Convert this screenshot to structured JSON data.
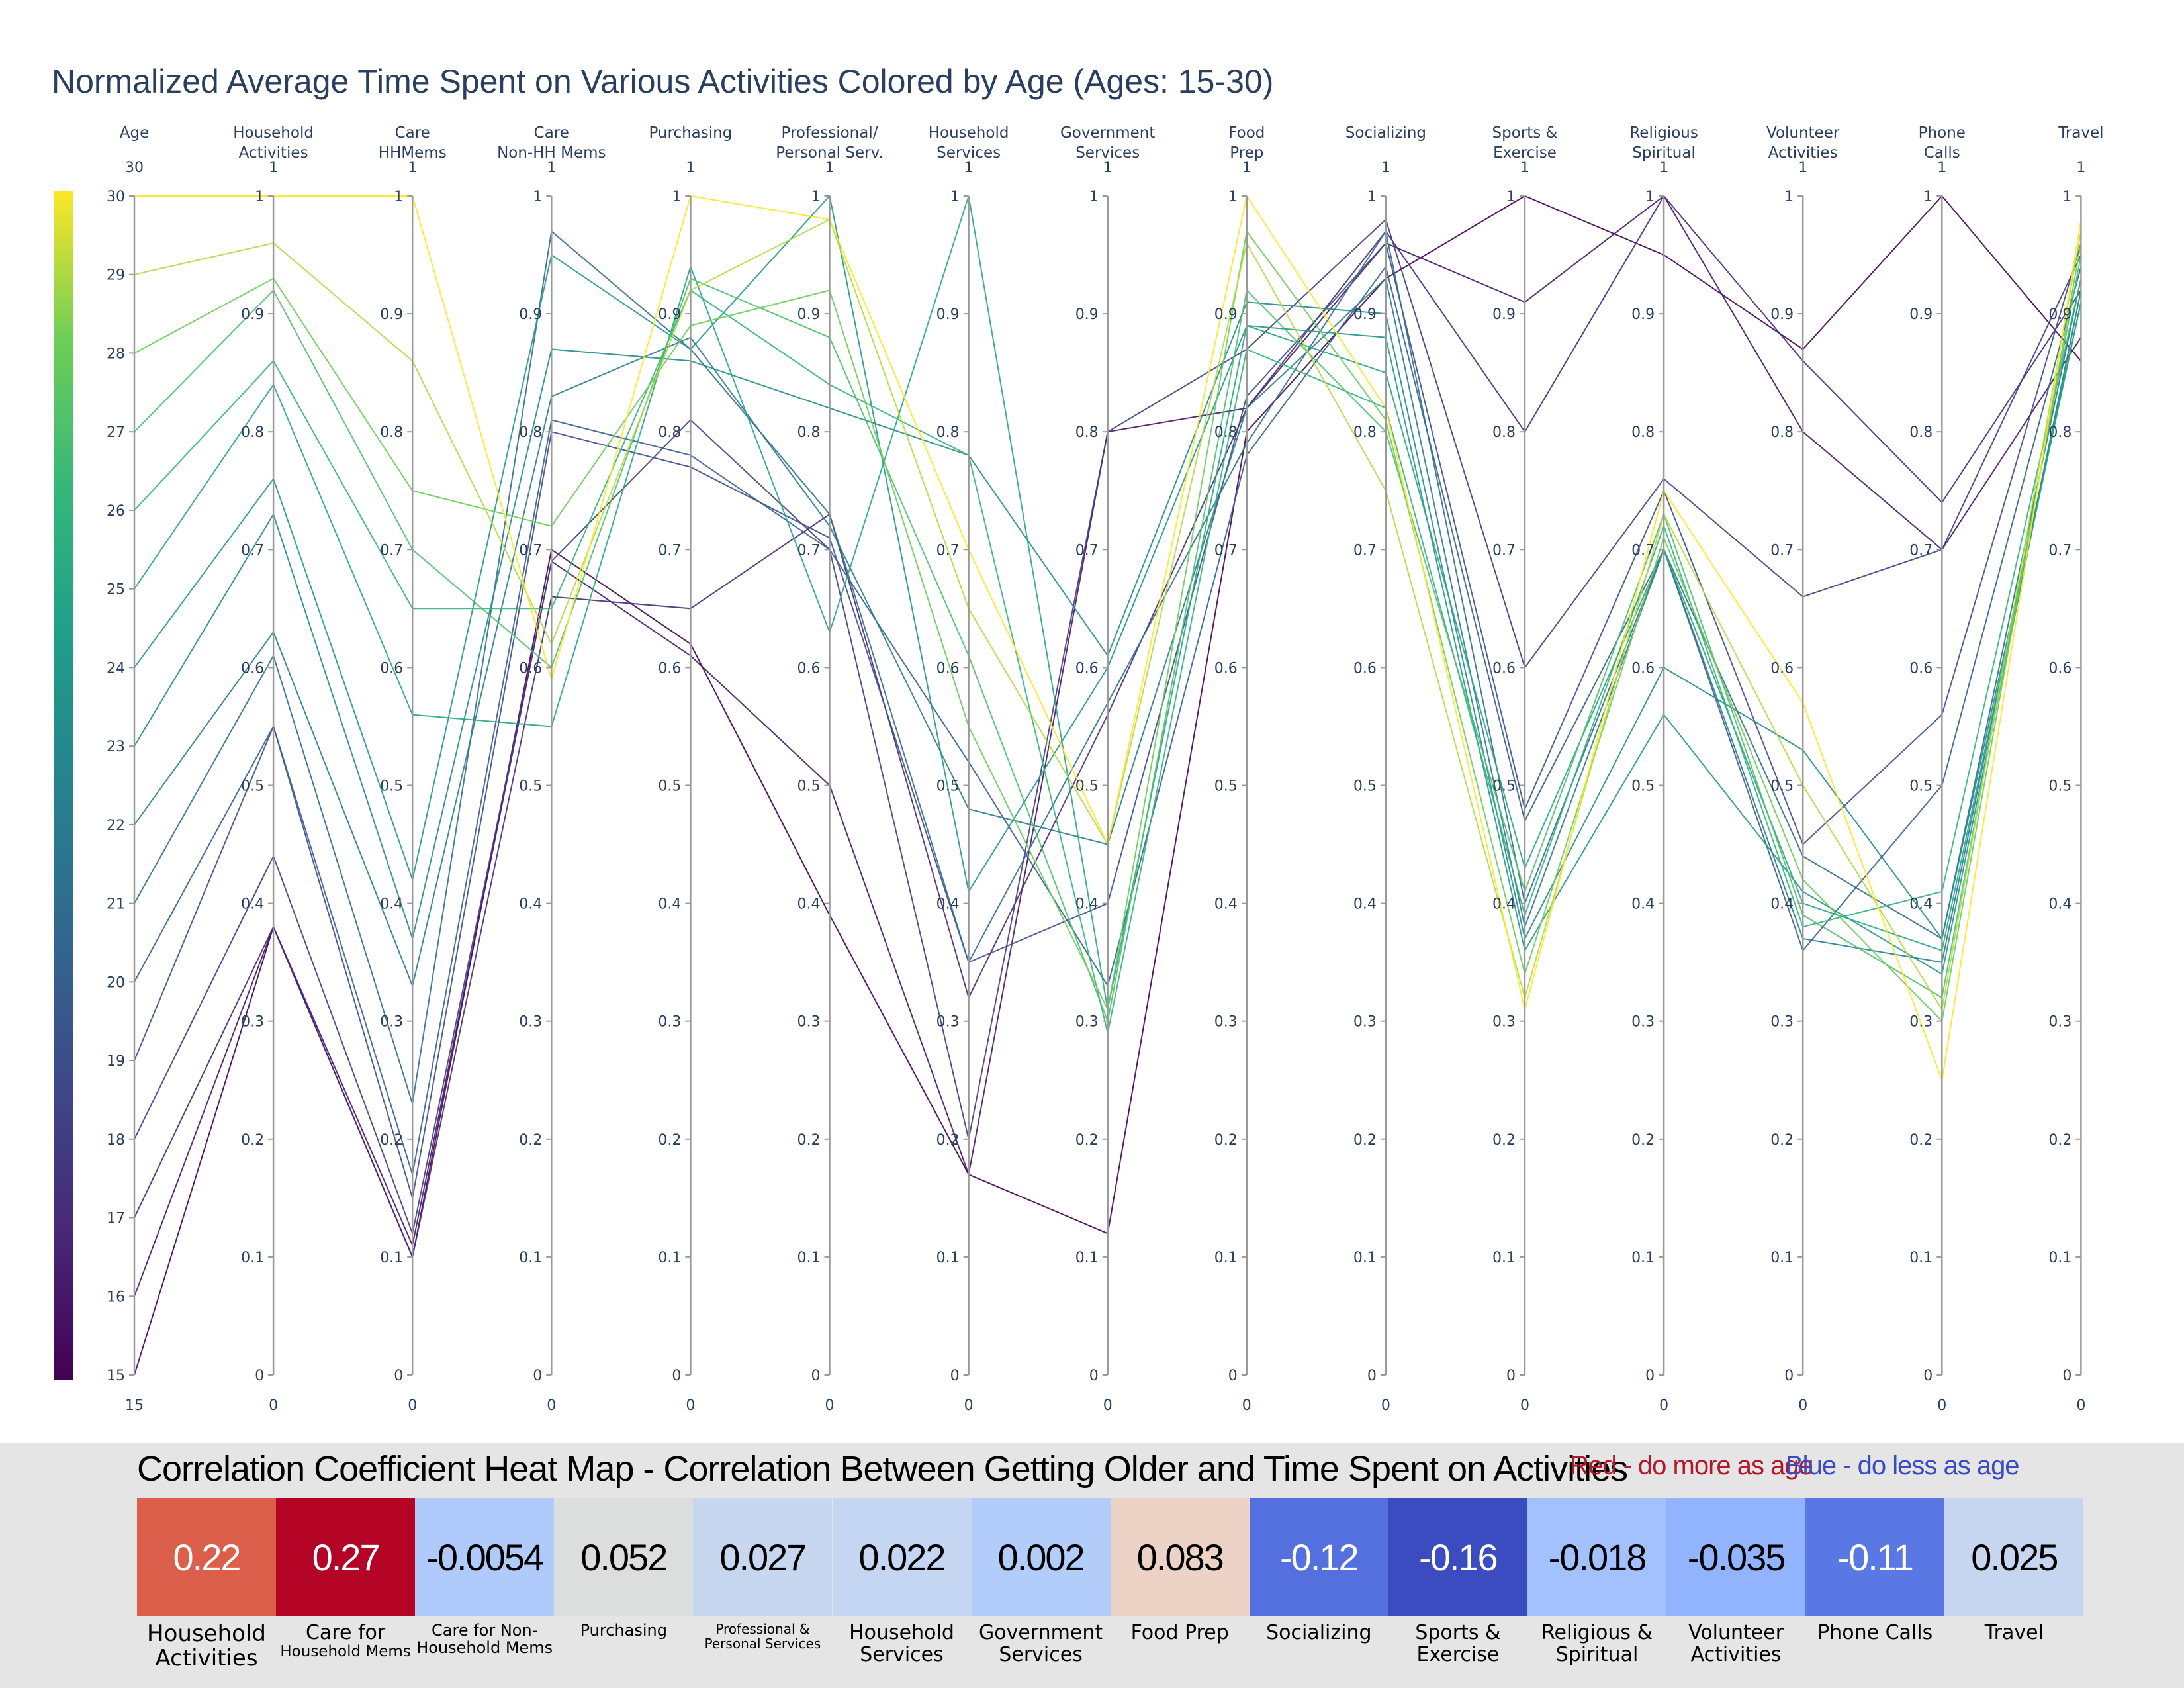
{
  "chart_data": [
    {
      "type": "parallel_coordinates",
      "title": "Normalized Average Time Spent on Various Activities Colored by Age (Ages: 15-30)",
      "color_scale": "viridis",
      "color_range": [
        15,
        30
      ],
      "axes": [
        {
          "name": "Age",
          "range": [
            15,
            30
          ],
          "ticks": [
            "15",
            "16",
            "17",
            "18",
            "19",
            "20",
            "21",
            "22",
            "23",
            "24",
            "25",
            "26",
            "27",
            "28",
            "29",
            "30"
          ]
        },
        {
          "name": "Household Activities",
          "range": [
            0,
            1
          ]
        },
        {
          "name": "Care HHMems",
          "range": [
            0,
            1
          ]
        },
        {
          "name": "Care Non-HH Mems",
          "range": [
            0,
            1
          ]
        },
        {
          "name": "Purchasing",
          "range": [
            0,
            1
          ]
        },
        {
          "name": "Professional/ Personal Serv.",
          "range": [
            0,
            1
          ]
        },
        {
          "name": "Household Services",
          "range": [
            0,
            1
          ]
        },
        {
          "name": "Government Services",
          "range": [
            0,
            1
          ]
        },
        {
          "name": "Food Prep",
          "range": [
            0,
            1
          ]
        },
        {
          "name": "Socializing",
          "range": [
            0,
            1
          ]
        },
        {
          "name": "Sports & Exercise",
          "range": [
            0,
            1
          ]
        },
        {
          "name": "Religious Spiritual",
          "range": [
            0,
            1
          ]
        },
        {
          "name": "Volunteer Activities",
          "range": [
            0,
            1
          ]
        },
        {
          "name": "Phone Calls",
          "range": [
            0,
            1
          ]
        },
        {
          "name": "Travel",
          "range": [
            0,
            1
          ]
        }
      ],
      "unit_ticks": [
        "0",
        "0.1",
        "0.2",
        "0.3",
        "0.4",
        "0.5",
        "0.6",
        "0.7",
        "0.8",
        "0.9",
        "1"
      ],
      "lines": [
        {
          "age": 15,
          "values": [
            0.38,
            0.1,
            0.7,
            0.62,
            0.39,
            0.17,
            0.12,
            0.8,
            0.93,
            1.0,
            0.95,
            0.87,
            1.0,
            0.86
          ]
        },
        {
          "age": 16,
          "values": [
            0.38,
            0.11,
            0.69,
            0.61,
            0.5,
            0.17,
            0.8,
            0.82,
            0.96,
            0.91,
            1.0,
            0.8,
            0.7,
            0.88
          ]
        },
        {
          "age": 17,
          "values": [
            0.38,
            0.1,
            0.66,
            0.65,
            0.73,
            0.32,
            0.56,
            0.82,
            0.97,
            0.8,
            1.0,
            0.86,
            0.74,
            0.92
          ]
        },
        {
          "age": 18,
          "values": [
            0.44,
            0.12,
            0.69,
            0.81,
            0.7,
            0.2,
            0.8,
            0.87,
            0.98,
            0.6,
            0.76,
            0.66,
            0.7,
            0.95
          ]
        },
        {
          "age": 19,
          "values": [
            0.55,
            0.15,
            0.8,
            0.77,
            0.71,
            0.35,
            0.4,
            0.83,
            0.96,
            0.48,
            0.75,
            0.45,
            0.56,
            0.96
          ]
        },
        {
          "age": 20,
          "values": [
            0.55,
            0.17,
            0.81,
            0.78,
            0.7,
            0.52,
            0.33,
            0.78,
            0.94,
            0.47,
            0.7,
            0.36,
            0.5,
            0.94
          ]
        },
        {
          "age": 21,
          "values": [
            0.61,
            0.23,
            0.97,
            0.87,
            0.73,
            0.35,
            0.57,
            0.79,
            0.97,
            0.4,
            0.7,
            0.44,
            0.37,
            0.93
          ]
        },
        {
          "age": 22,
          "values": [
            0.63,
            0.33,
            0.83,
            0.88,
            0.72,
            0.48,
            0.45,
            0.82,
            0.93,
            0.38,
            0.7,
            0.37,
            0.35,
            0.92
          ]
        },
        {
          "age": 23,
          "values": [
            0.73,
            0.37,
            0.87,
            0.86,
            0.82,
            0.78,
            0.61,
            0.91,
            0.9,
            0.37,
            0.6,
            0.53,
            0.37,
            0.91
          ]
        },
        {
          "age": 24,
          "values": [
            0.76,
            0.42,
            0.95,
            0.87,
            1.0,
            0.41,
            0.6,
            0.89,
            0.88,
            0.36,
            0.56,
            0.41,
            0.34,
            0.92
          ]
        },
        {
          "age": 25,
          "values": [
            0.84,
            0.56,
            0.55,
            0.94,
            0.63,
            1.0,
            0.31,
            0.89,
            0.85,
            0.43,
            0.7,
            0.4,
            0.36,
            0.91
          ]
        },
        {
          "age": 26,
          "values": [
            0.86,
            0.65,
            0.65,
            0.92,
            0.84,
            0.78,
            0.29,
            0.87,
            0.82,
            0.39,
            0.72,
            0.38,
            0.41,
            0.93
          ]
        },
        {
          "age": 27,
          "values": [
            0.92,
            0.7,
            0.6,
            0.93,
            0.88,
            0.61,
            0.3,
            0.92,
            0.8,
            0.41,
            0.73,
            0.39,
            0.32,
            0.95
          ]
        },
        {
          "age": 28,
          "values": [
            0.93,
            0.75,
            0.72,
            0.89,
            0.92,
            0.55,
            0.31,
            0.97,
            0.81,
            0.34,
            0.71,
            0.42,
            0.3,
            0.96
          ]
        },
        {
          "age": 29,
          "values": [
            0.96,
            0.86,
            0.62,
            0.92,
            0.98,
            0.65,
            0.45,
            0.96,
            0.75,
            0.32,
            0.73,
            0.5,
            0.31,
            0.97
          ]
        },
        {
          "age": 30,
          "values": [
            1.0,
            1.0,
            0.59,
            1.0,
            0.98,
            0.7,
            0.45,
            1.0,
            0.82,
            0.31,
            0.75,
            0.57,
            0.25,
            0.98
          ]
        }
      ]
    },
    {
      "type": "heatmap",
      "title": "Correlation Coefficient Heat Map - Correlation Between Getting Older and Time Spent on Activities",
      "legend_red": "Red - do more as age",
      "legend_blue": "Blue - do less as age",
      "cells": [
        {
          "label": "Household Activities",
          "value": "0.22",
          "color": "#dc5f4b",
          "text_color": "#ffffff",
          "label_lines": [
            "Household",
            "Activities"
          ],
          "font_sizes": [
            34,
            34
          ]
        },
        {
          "label": "Care for Household Mems",
          "value": "0.27",
          "color": "#b40426",
          "text_color": "#ffffff",
          "label_lines": [
            "Care for",
            "Household Mems"
          ],
          "font_sizes": [
            30,
            23
          ]
        },
        {
          "label": "Care for Non-Household Mems",
          "value": "-0.0054",
          "color": "#b0cbfb",
          "text_color": "#000000",
          "label_lines": [
            "Care for Non-",
            "Household Mems"
          ],
          "font_sizes": [
            24,
            24
          ]
        },
        {
          "label": "Purchasing",
          "value": "0.052",
          "color": "#dcdddd",
          "text_color": "#000000",
          "label_lines": [
            "Purchasing"
          ],
          "font_sizes": [
            24
          ]
        },
        {
          "label": "Professional & Personal Services",
          "value": "0.027",
          "color": "#c7d7f0",
          "text_color": "#000000",
          "label_lines": [
            "Professional &",
            "Personal Services"
          ],
          "font_sizes": [
            20,
            20
          ]
        },
        {
          "label": "Household Services",
          "value": "0.022",
          "color": "#c5d6f2",
          "text_color": "#000000",
          "label_lines": [
            "Household",
            "Services"
          ],
          "font_sizes": [
            30,
            30
          ]
        },
        {
          "label": "Government Services",
          "value": "0.002",
          "color": "#b3cdfb",
          "text_color": "#000000",
          "label_lines": [
            "Government",
            "Services"
          ],
          "font_sizes": [
            30,
            30
          ]
        },
        {
          "label": "Food Prep",
          "value": "0.083",
          "color": "#ecd3c5",
          "text_color": "#000000",
          "label_lines": [
            "Food Prep"
          ],
          "font_sizes": [
            30
          ]
        },
        {
          "label": "Socializing",
          "value": "-0.12",
          "color": "#5470de",
          "text_color": "#ffffff",
          "label_lines": [
            "Socializing"
          ],
          "font_sizes": [
            30
          ]
        },
        {
          "label": "Sports & Exercise",
          "value": "-0.16",
          "color": "#3b4cc0",
          "text_color": "#ffffff",
          "label_lines": [
            "Sports &",
            "Exercise"
          ],
          "font_sizes": [
            30,
            30
          ]
        },
        {
          "label": "Religious & Spiritual",
          "value": "-0.018",
          "color": "#a2c1fe",
          "text_color": "#000000",
          "label_lines": [
            "Religious &",
            "Spiritual"
          ],
          "font_sizes": [
            30,
            30
          ]
        },
        {
          "label": "Volunteer Activities",
          "value": "-0.035",
          "color": "#92b4fe",
          "text_color": "#000000",
          "label_lines": [
            "Volunteer",
            "Activities"
          ],
          "font_sizes": [
            30,
            30
          ]
        },
        {
          "label": "Phone Calls",
          "value": "-0.11",
          "color": "#5a78e4",
          "text_color": "#ffffff",
          "label_lines": [
            "Phone Calls"
          ],
          "font_sizes": [
            30
          ]
        },
        {
          "label": "Travel",
          "value": "0.025",
          "color": "#c6d6f1",
          "text_color": "#000000",
          "label_lines": [
            "Travel"
          ],
          "font_sizes": [
            30
          ]
        }
      ]
    }
  ]
}
